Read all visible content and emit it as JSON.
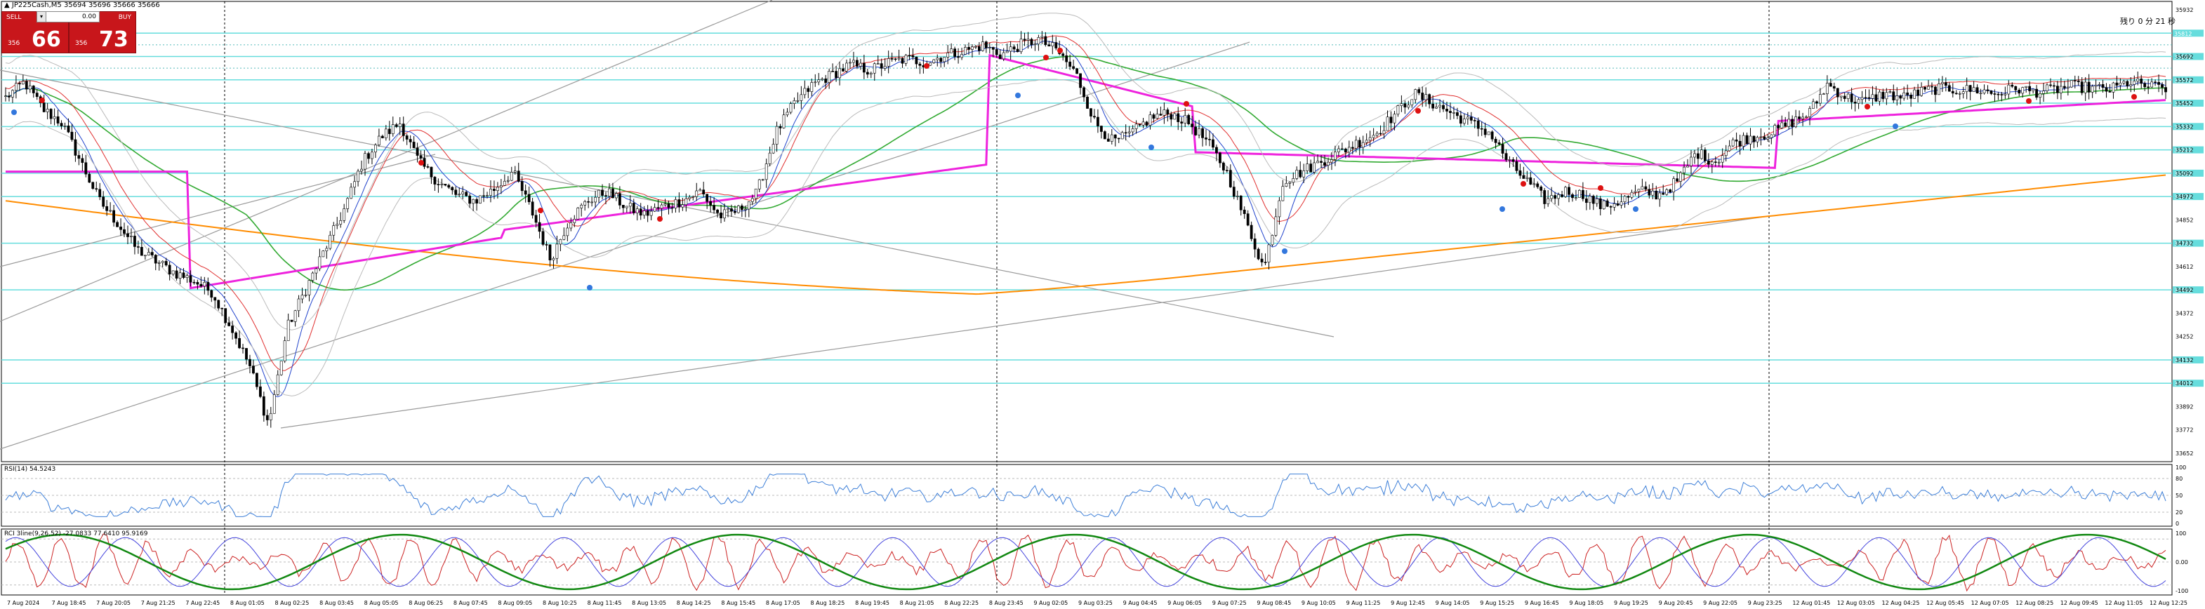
{
  "header": {
    "symbol_line": "JP225Cash,M5  35694 35696 35666 35666"
  },
  "trade_panel": {
    "sell_label": "SELL",
    "buy_label": "BUY",
    "lot_value": "0.00",
    "sell_prefix": "356",
    "sell_big": "66",
    "buy_prefix": "356",
    "buy_big": "73"
  },
  "timer": "残り 0 分 21 秒",
  "colors": {
    "up_candle": "#ffffff",
    "down_candle": "#000000",
    "sma_long": "#ff8c00",
    "sma_mid": "#33aa33",
    "trend_magenta": "#ee22dd",
    "ma_fast_red": "#e03030",
    "ma_fast_blue": "#2244cc",
    "level_lines": "#66dddd",
    "rsi_line": "#3d7fd8",
    "rci_red": "#cc2222",
    "rci_blue": "#4444dd",
    "rci_green": "#118811"
  },
  "chart_data": [
    {
      "type": "line",
      "panel": "main",
      "price_axis_labels": [
        "35932",
        "35692",
        "35572",
        "35452",
        "35332",
        "35212",
        "35092",
        "34972",
        "34852",
        "34732",
        "34612",
        "34492",
        "34372",
        "34252",
        "34132",
        "34012",
        "33892",
        "33772",
        "33652"
      ],
      "level_tags": [
        "35812",
        "35692",
        "35572",
        "35452",
        "35332",
        "35212",
        "35092",
        "34972",
        "34732",
        "34492",
        "34132",
        "34012"
      ],
      "time_labels": [
        "7 Aug 2024",
        "7 Aug 18:45",
        "7 Aug 20:05",
        "7 Aug 21:25",
        "7 Aug 22:45",
        "8 Aug 01:05",
        "8 Aug 02:25",
        "8 Aug 03:45",
        "8 Aug 05:05",
        "8 Aug 06:25",
        "8 Aug 07:45",
        "8 Aug 09:05",
        "8 Aug 10:25",
        "8 Aug 11:45",
        "8 Aug 13:05",
        "8 Aug 14:25",
        "8 Aug 15:45",
        "8 Aug 17:05",
        "8 Aug 18:25",
        "8 Aug 19:45",
        "8 Aug 21:05",
        "8 Aug 22:25",
        "8 Aug 23:45",
        "9 Aug 02:05",
        "9 Aug 03:25",
        "9 Aug 04:45",
        "9 Aug 06:05",
        "9 Aug 07:25",
        "9 Aug 08:45",
        "9 Aug 10:05",
        "9 Aug 11:25",
        "9 Aug 12:45",
        "9 Aug 14:05",
        "9 Aug 15:25",
        "9 Aug 16:45",
        "9 Aug 18:05",
        "9 Aug 19:25",
        "9 Aug 20:45",
        "9 Aug 22:05",
        "9 Aug 23:25",
        "12 Aug 01:45",
        "12 Aug 03:05",
        "12 Aug 04:25",
        "12 Aug 05:45",
        "12 Aug 07:05",
        "12 Aug 08:25",
        "12 Aug 09:45",
        "12 Aug 11:05",
        "12 Aug 12:25"
      ],
      "y_range": [
        33652,
        35932
      ],
      "close_path": [
        35480,
        35560,
        35420,
        35350,
        35150,
        34950,
        34830,
        34700,
        34640,
        34580,
        34540,
        34480,
        34300,
        34100,
        33800,
        34300,
        34500,
        34700,
        34900,
        35150,
        35280,
        35350,
        35150,
        35050,
        34980,
        34950,
        35010,
        35100,
        34900,
        34650,
        34850,
        34950,
        35000,
        34920,
        34880,
        34920,
        34950,
        35000,
        34870,
        34900,
        34990,
        35300,
        35450,
        35550,
        35600,
        35650,
        35620,
        35660,
        35680,
        35660,
        35700,
        35720,
        35750,
        35700,
        35750,
        35780,
        35720,
        35600,
        35350,
        35250,
        35300,
        35380,
        35400,
        35350,
        35250,
        35100,
        34850,
        34600,
        35050,
        35100,
        35150,
        35200,
        35250,
        35300,
        35400,
        35500,
        35450,
        35400,
        35350,
        35300,
        35150,
        35050,
        34950,
        35000,
        34980,
        34920,
        34950,
        35000,
        34980,
        35050,
        35200,
        35150,
        35250,
        35280,
        35300,
        35350,
        35400,
        35550,
        35480,
        35460,
        35500,
        35480,
        35510,
        35530,
        35520,
        35520,
        35500,
        35530,
        35510,
        35520,
        35540,
        35530,
        35520,
        35560,
        35540,
        35530
      ]
    },
    {
      "type": "line",
      "panel": "rsi",
      "label": "RSI(14) 54.5243",
      "axis_labels": [
        "100",
        "80",
        "50",
        "20",
        "0"
      ],
      "y_range": [
        0,
        100
      ]
    },
    {
      "type": "line",
      "panel": "rci",
      "label": "RCI 3line(9,26,52) -27.0833 77.6410 95.9169",
      "axis_labels": [
        "100",
        "0.00",
        "-100"
      ],
      "y_range": [
        -100,
        100
      ]
    }
  ]
}
